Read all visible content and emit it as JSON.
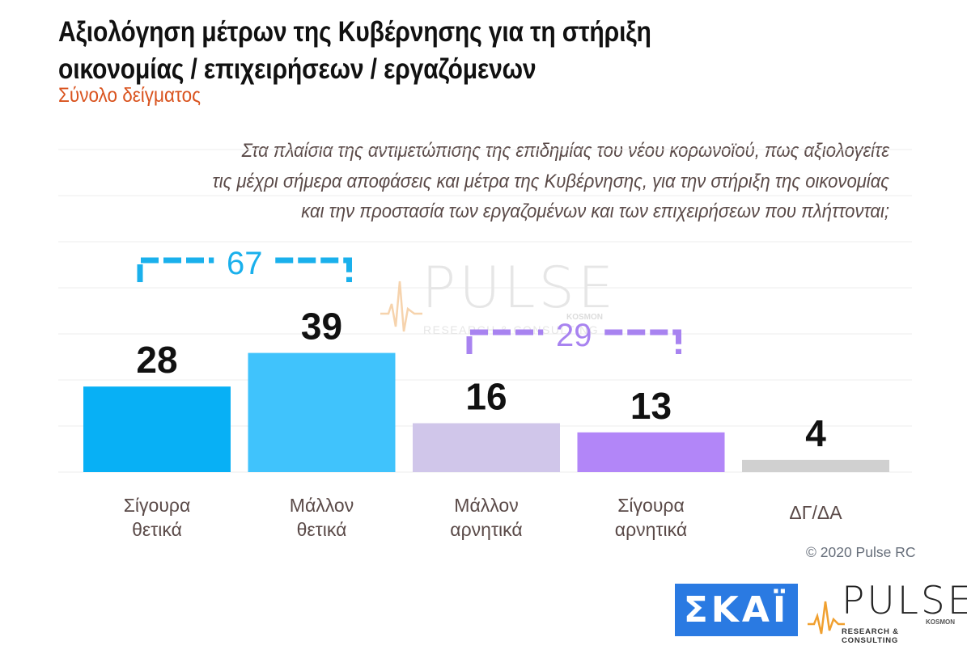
{
  "header": {
    "title_line1": "Αξιολόγηση μέτρων της Κυβέρνησης για τη στήριξη",
    "title_line2": "οικονομίας / επιχειρήσεων / εργαζόμενων",
    "subtitle": "Σύνολο δείγματος",
    "question_line1": "Στα πλαίσια της αντιμετώπισης της επιδημίας του νέου κορωνοϊού, πως αξιολογείτε",
    "question_line2": "τις μέχρι σήμερα αποφάσεις και μέτρα της Κυβέρνησης, για την στήριξη της οικονομίας",
    "question_line3": "και την προστασία των εργαζομένων και των επιχειρήσεων που πλήττονται;"
  },
  "chart_data": {
    "type": "bar",
    "categories": [
      [
        "Σίγουρα",
        "θετικά"
      ],
      [
        "Μάλλον",
        "θετικά"
      ],
      [
        "Μάλλον",
        "αρνητικά"
      ],
      [
        "Σίγουρα",
        "αρνητικά"
      ],
      [
        "ΔΓ/ΔΑ"
      ]
    ],
    "values": [
      28,
      39,
      16,
      13,
      4
    ],
    "colors": [
      "#08b0f5",
      "#40c3fc",
      "#d0c6ea",
      "#b286f8",
      "#d0d0d0"
    ],
    "groups": [
      {
        "label": "67",
        "from": 0,
        "to": 1,
        "color": "#1ab0ec"
      },
      {
        "label": "29",
        "from": 2,
        "to": 3,
        "color": "#a883f0"
      }
    ],
    "grid": true,
    "ylim": [
      0,
      50
    ]
  },
  "watermark": {
    "word": "PULSE",
    "tagline": "RESEARCH & CONSULTING",
    "sub": "KOSMON"
  },
  "footer": {
    "copyright": "© 2020 Pulse RC",
    "skai_logo": "ΣΚΑΪ",
    "pulse_logo": "PULSE",
    "pulse_sub": "KOSMON",
    "pulse_tagline": "RESEARCH & CONSULTING"
  }
}
